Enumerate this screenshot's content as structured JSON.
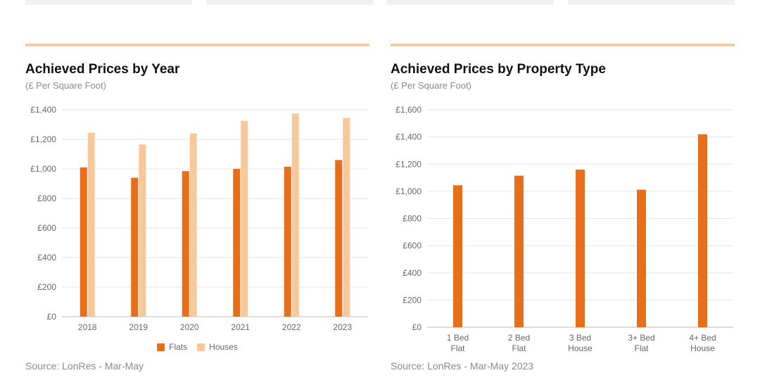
{
  "colors": {
    "accent_rule": "#f5c9a0",
    "grid": "#e6e6e6",
    "axis": "#bdbdbd",
    "flats": "#e86e1a",
    "houses": "#f8c89b",
    "card_bg": "#f1f1f1"
  },
  "panels": {
    "year": {
      "title": "Achieved Prices by Year",
      "subtitle": "(£ Per Square Foot)",
      "source": "Source: LonRes - Mar-May",
      "legend": [
        {
          "label": "Flats",
          "color": "#e86e1a"
        },
        {
          "label": "Houses",
          "color": "#f8c89b"
        }
      ]
    },
    "type": {
      "title": "Achieved Prices by Property Type",
      "subtitle": "(£ Per Square Foot)",
      "source": "Source: LonRes - Mar-May 2023"
    }
  },
  "chart_data": [
    {
      "type": "bar",
      "title": "Achieved Prices by Year",
      "subtitle": "(£ Per Square Foot)",
      "categories": [
        "2018",
        "2019",
        "2020",
        "2021",
        "2022",
        "2023"
      ],
      "series": [
        {
          "name": "Flats",
          "color": "#e86e1a",
          "values": [
            1010,
            940,
            985,
            1000,
            1015,
            1060
          ]
        },
        {
          "name": "Houses",
          "color": "#f8c89b",
          "values": [
            1245,
            1165,
            1240,
            1325,
            1375,
            1345
          ]
        }
      ],
      "yticks": [
        "£0",
        "£200",
        "£400",
        "£600",
        "£800",
        "£1,000",
        "£1,200",
        "£1,400"
      ],
      "ylim": [
        0,
        1400
      ],
      "ystep": 200,
      "grid": true,
      "legend": "bottom-center"
    },
    {
      "type": "bar",
      "title": "Achieved Prices by Property Type",
      "subtitle": "(£ Per Square Foot)",
      "categories": [
        [
          "1 Bed",
          "Flat"
        ],
        [
          "2 Bed",
          "Flat"
        ],
        [
          "3 Bed",
          "House"
        ],
        [
          "3+ Bed",
          "Flat"
        ],
        [
          "4+ Bed",
          "House"
        ]
      ],
      "series": [
        {
          "color": "#e86e1a",
          "values": [
            1045,
            1115,
            1160,
            1012,
            1420
          ]
        }
      ],
      "yticks": [
        "£0",
        "£200",
        "£400",
        "£600",
        "£800",
        "£1,000",
        "£1,200",
        "£1,400",
        "£1,600"
      ],
      "ylim": [
        0,
        1600
      ],
      "ystep": 200,
      "grid": true
    }
  ]
}
